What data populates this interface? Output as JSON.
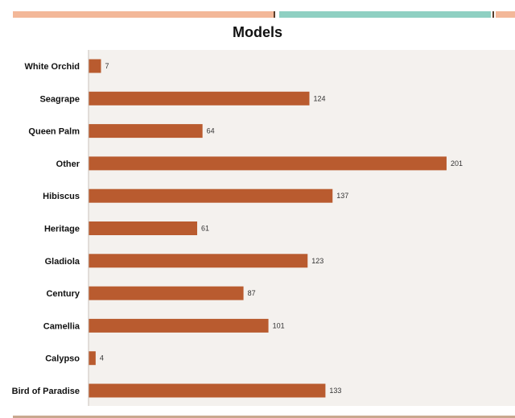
{
  "colors": {
    "bar": "#b95b2f",
    "plot_background": "#f4f1ee"
  },
  "chart_data": {
    "type": "bar",
    "orientation": "horizontal",
    "title": "Models",
    "xlabel": "",
    "ylabel": "",
    "categories": [
      "White Orchid",
      "Seagrape",
      "Queen Palm",
      "Other",
      "Hibiscus",
      "Heritage",
      "Gladiola",
      "Century",
      "Camellia",
      "Calypso",
      "Bird of Paradise"
    ],
    "values": [
      7,
      124,
      64,
      201,
      137,
      61,
      123,
      87,
      101,
      4,
      133
    ],
    "xlim": [
      0,
      201
    ],
    "grid": false,
    "legend": "none",
    "data_labels": true
  }
}
